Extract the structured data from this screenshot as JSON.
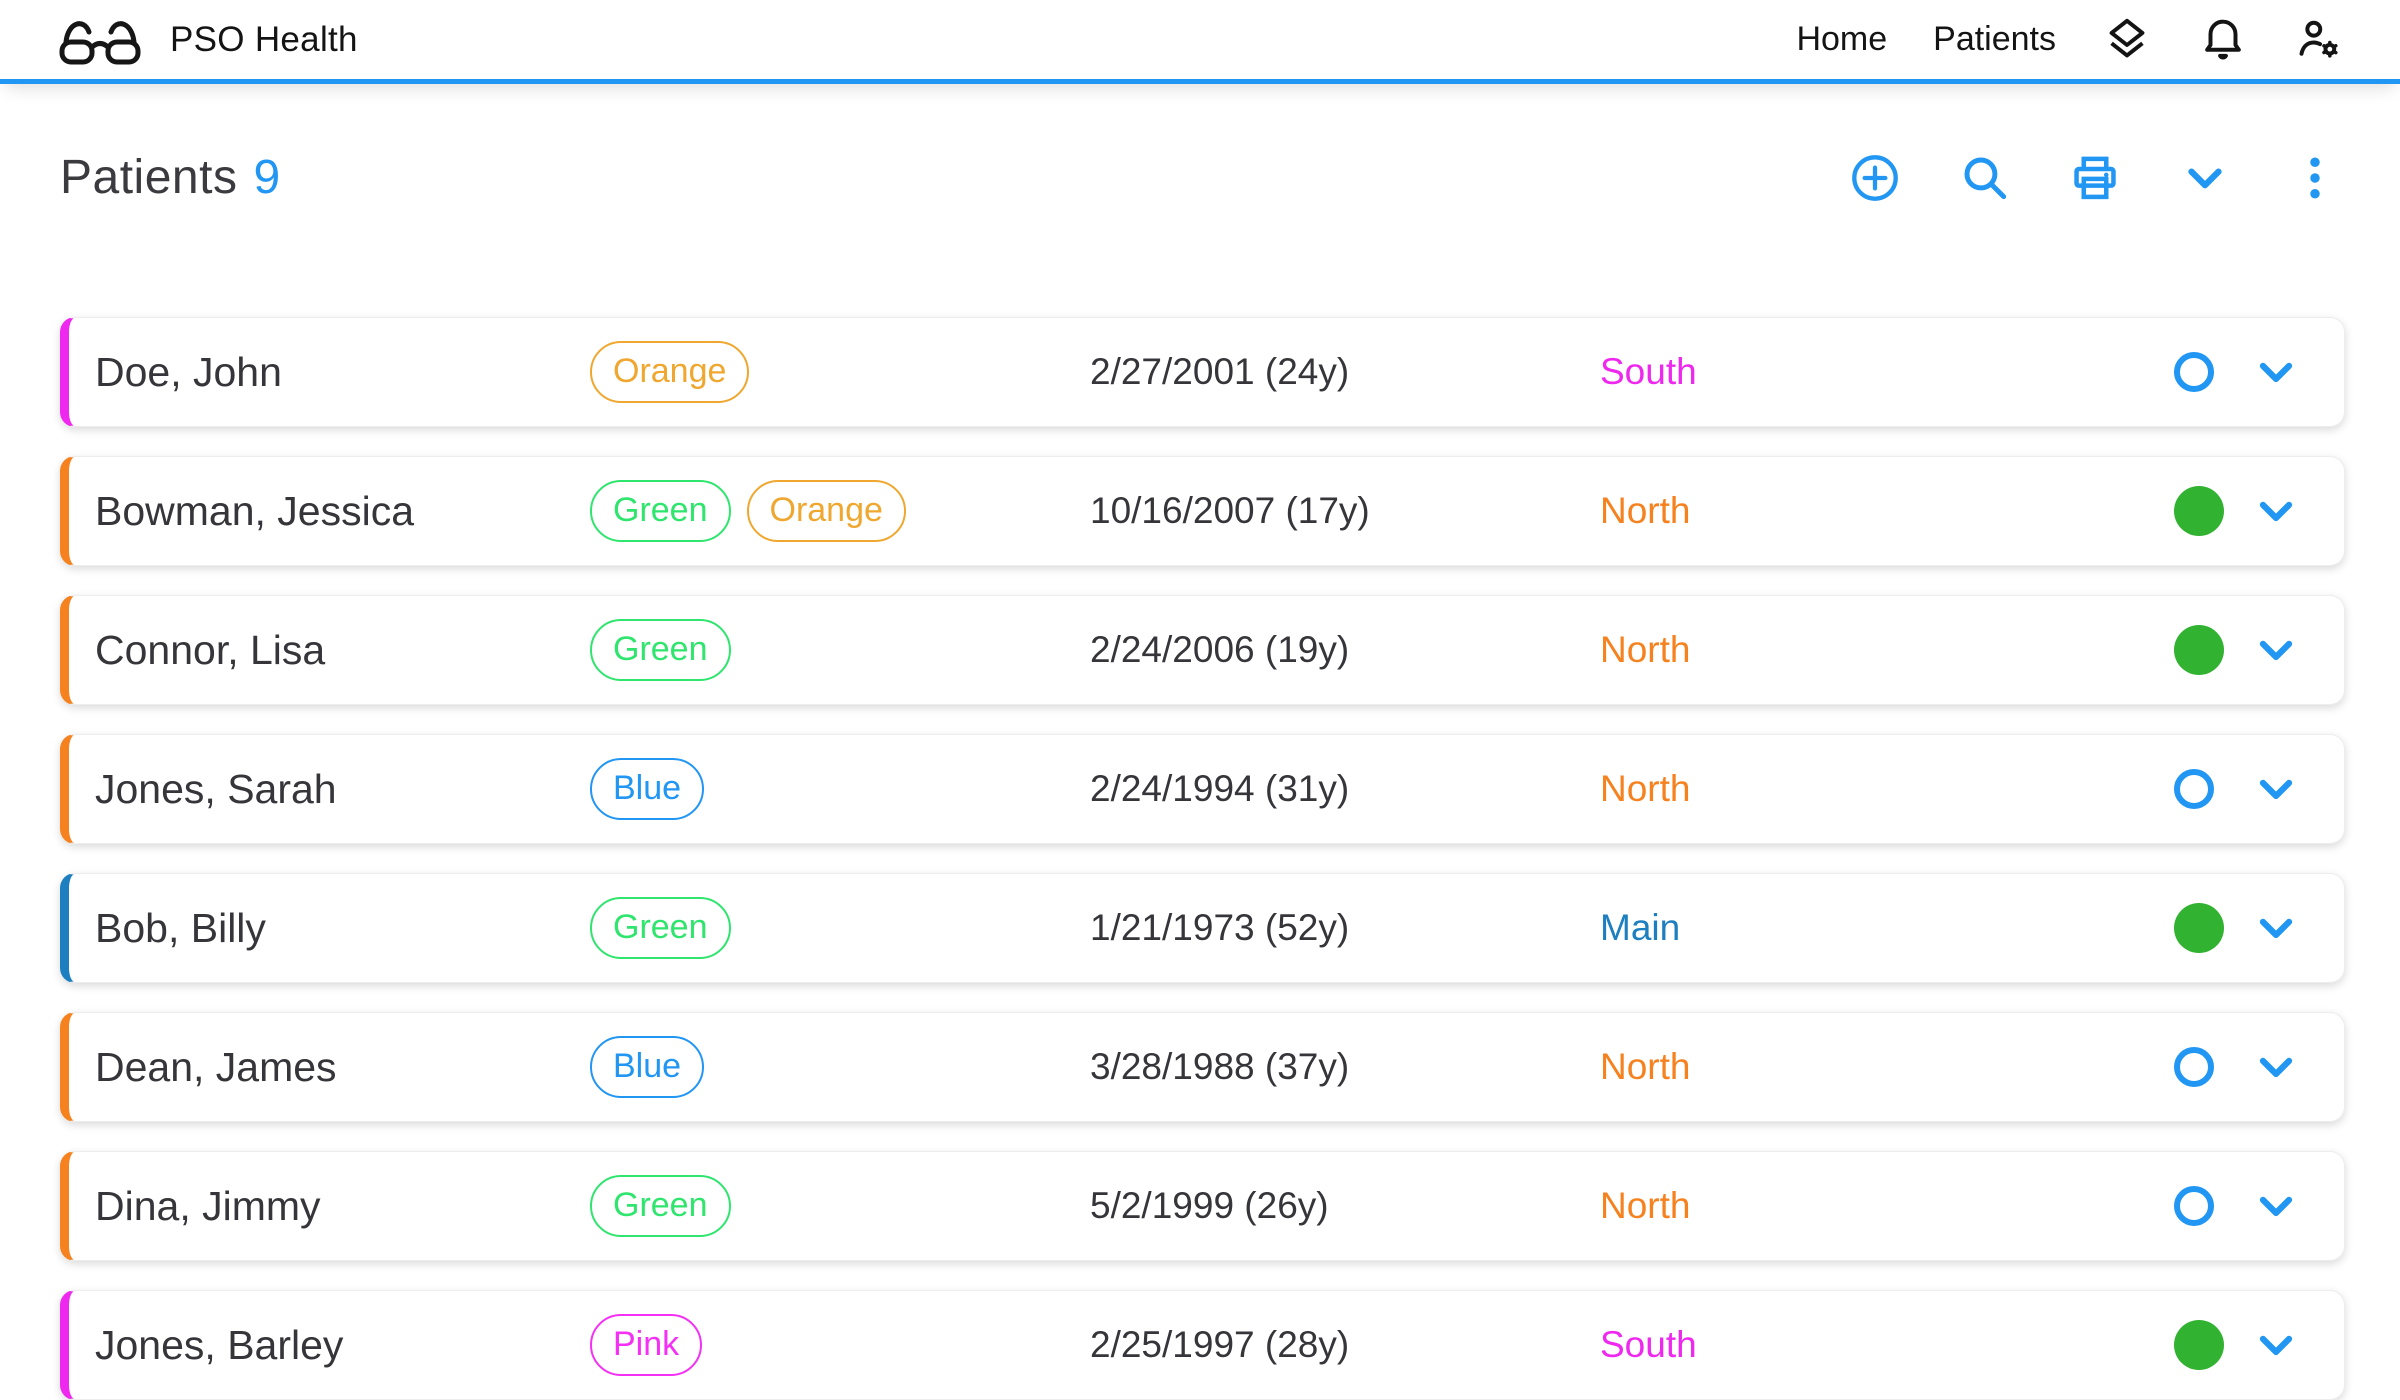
{
  "colors": {
    "accent_blue": "#2196F3",
    "header_underline": "#2196F3",
    "status_filled_green": "#31B231",
    "north_orange": "#F5821F",
    "south_magenta": "#EE28EE",
    "main_steel_blue": "#1E7FC0",
    "tag_green": "#2FE56E",
    "tag_orange": "#EFA72F",
    "tag_blue": "#2196F3",
    "tag_pink": "#F530F5"
  },
  "header": {
    "brand": "PSO Health",
    "logo_icon": "glasses-icon",
    "nav": [
      {
        "label": "Home"
      },
      {
        "label": "Patients"
      }
    ],
    "icons": [
      "layers-icon",
      "notifications-bell-icon",
      "manage-accounts-icon"
    ]
  },
  "page": {
    "title": "Patients",
    "count": "9"
  },
  "toolbar": {
    "icons": [
      "add-circle-icon",
      "search-icon",
      "print-icon",
      "chevron-down-icon",
      "more-vertical-icon"
    ]
  },
  "patients": [
    {
      "name": "Doe, John",
      "tags": [
        {
          "label": "Orange",
          "color": "#EFA72F"
        }
      ],
      "dob": "2/27/2001 (24y)",
      "location": "South",
      "location_color": "#EE28EE",
      "accent_color": "#EE28EE",
      "status": "open"
    },
    {
      "name": "Bowman, Jessica",
      "tags": [
        {
          "label": "Green",
          "color": "#2FE56E"
        },
        {
          "label": "Orange",
          "color": "#EFA72F"
        }
      ],
      "dob": "10/16/2007 (17y)",
      "location": "North",
      "location_color": "#F5821F",
      "accent_color": "#F5821F",
      "status": "filled"
    },
    {
      "name": "Connor, Lisa",
      "tags": [
        {
          "label": "Green",
          "color": "#2FE56E"
        }
      ],
      "dob": "2/24/2006 (19y)",
      "location": "North",
      "location_color": "#F5821F",
      "accent_color": "#F5821F",
      "status": "filled"
    },
    {
      "name": "Jones, Sarah",
      "tags": [
        {
          "label": "Blue",
          "color": "#2196F3"
        }
      ],
      "dob": "2/24/1994 (31y)",
      "location": "North",
      "location_color": "#F5821F",
      "accent_color": "#F5821F",
      "status": "open"
    },
    {
      "name": "Bob, Billy",
      "tags": [
        {
          "label": "Green",
          "color": "#2FE56E"
        }
      ],
      "dob": "1/21/1973 (52y)",
      "location": "Main",
      "location_color": "#1E7FC0",
      "accent_color": "#1E7FC0",
      "status": "filled"
    },
    {
      "name": "Dean, James",
      "tags": [
        {
          "label": "Blue",
          "color": "#2196F3"
        }
      ],
      "dob": "3/28/1988 (37y)",
      "location": "North",
      "location_color": "#F5821F",
      "accent_color": "#F5821F",
      "status": "open"
    },
    {
      "name": "Dina, Jimmy",
      "tags": [
        {
          "label": "Green",
          "color": "#2FE56E"
        }
      ],
      "dob": "5/2/1999 (26y)",
      "location": "North",
      "location_color": "#F5821F",
      "accent_color": "#F5821F",
      "status": "open"
    },
    {
      "name": "Jones, Barley",
      "tags": [
        {
          "label": "Pink",
          "color": "#F530F5"
        }
      ],
      "dob": "2/25/1997 (28y)",
      "location": "South",
      "location_color": "#EE28EE",
      "accent_color": "#EE28EE",
      "status": "filled"
    }
  ]
}
